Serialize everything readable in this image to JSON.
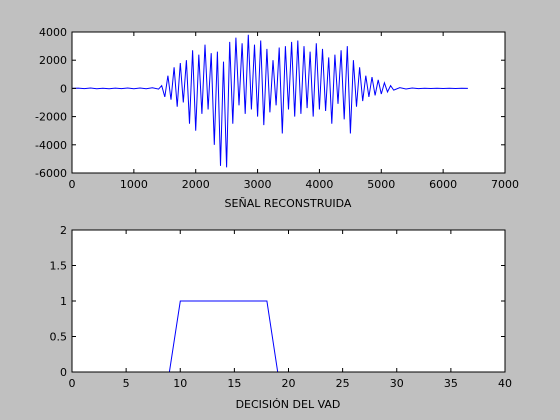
{
  "figure": {
    "background": "#c0c0c0",
    "plot_background": "#ffffff",
    "line_color": "#0000ff"
  },
  "chart_data": [
    {
      "type": "line",
      "title": "",
      "xlabel": "SEÑAL RECONSTRUIDA",
      "ylabel": "",
      "xlim": [
        0,
        7000
      ],
      "ylim": [
        -6000,
        4000
      ],
      "xticks": [
        0,
        1000,
        2000,
        3000,
        4000,
        5000,
        6000,
        7000
      ],
      "yticks": [
        -6000,
        -4000,
        -2000,
        0,
        2000,
        4000
      ],
      "grid": false,
      "series": [
        {
          "color": "#0000ff",
          "x": [
            0,
            100,
            200,
            300,
            400,
            500,
            600,
            700,
            800,
            900,
            1000,
            1100,
            1200,
            1300,
            1400,
            1450,
            1500,
            1550,
            1600,
            1650,
            1700,
            1750,
            1800,
            1850,
            1900,
            1950,
            2000,
            2050,
            2100,
            2150,
            2200,
            2250,
            2300,
            2350,
            2400,
            2450,
            2500,
            2550,
            2600,
            2650,
            2700,
            2750,
            2800,
            2850,
            2900,
            2950,
            3000,
            3050,
            3100,
            3150,
            3200,
            3250,
            3300,
            3350,
            3400,
            3450,
            3500,
            3550,
            3600,
            3650,
            3700,
            3750,
            3800,
            3850,
            3900,
            3950,
            4000,
            4050,
            4100,
            4150,
            4200,
            4250,
            4300,
            4350,
            4400,
            4450,
            4500,
            4550,
            4600,
            4650,
            4700,
            4750,
            4800,
            4850,
            4900,
            4950,
            5000,
            5050,
            5100,
            5150,
            5200,
            5300,
            5400,
            5500,
            5600,
            5700,
            5800,
            5900,
            6000,
            6100,
            6200,
            6300,
            6400
          ],
          "y": [
            0,
            20,
            -15,
            25,
            -20,
            15,
            -25,
            20,
            -15,
            25,
            -20,
            30,
            -25,
            40,
            -50,
            200,
            -600,
            900,
            -800,
            1500,
            -1300,
            1800,
            -1000,
            2000,
            -2500,
            2700,
            -3000,
            2400,
            -1800,
            3100,
            -1500,
            2500,
            -4000,
            2600,
            -5500,
            1900,
            -5600,
            3300,
            -2500,
            3600,
            -1200,
            3200,
            -1800,
            3800,
            -1500,
            3100,
            -2000,
            3400,
            -2600,
            2800,
            -1700,
            2000,
            -1200,
            2900,
            -3200,
            3000,
            -1500,
            3300,
            -2000,
            3400,
            -1800,
            3000,
            -1400,
            2600,
            -2000,
            3200,
            -1500,
            2800,
            -1600,
            2200,
            -2500,
            2400,
            -1100,
            2700,
            -2200,
            3000,
            -3200,
            2000,
            -1300,
            1500,
            -900,
            900,
            -600,
            800,
            -500,
            600,
            -400,
            400,
            -250,
            200,
            -120,
            60,
            -40,
            25,
            -15,
            15,
            -10,
            10,
            -8,
            8,
            -5,
            5,
            0
          ]
        }
      ]
    },
    {
      "type": "line",
      "title": "",
      "xlabel": "DECISIÓN DEL VAD",
      "ylabel": "",
      "xlim": [
        0,
        40
      ],
      "ylim": [
        0,
        2
      ],
      "xticks": [
        0,
        5,
        10,
        15,
        20,
        25,
        30,
        35,
        40
      ],
      "yticks": [
        0,
        0.5,
        1,
        1.5,
        2
      ],
      "grid": false,
      "series": [
        {
          "color": "#0000ff",
          "x": [
            0,
            9,
            10,
            18,
            19,
            40
          ],
          "y": [
            0,
            0,
            1,
            1,
            0,
            0
          ]
        }
      ]
    }
  ]
}
